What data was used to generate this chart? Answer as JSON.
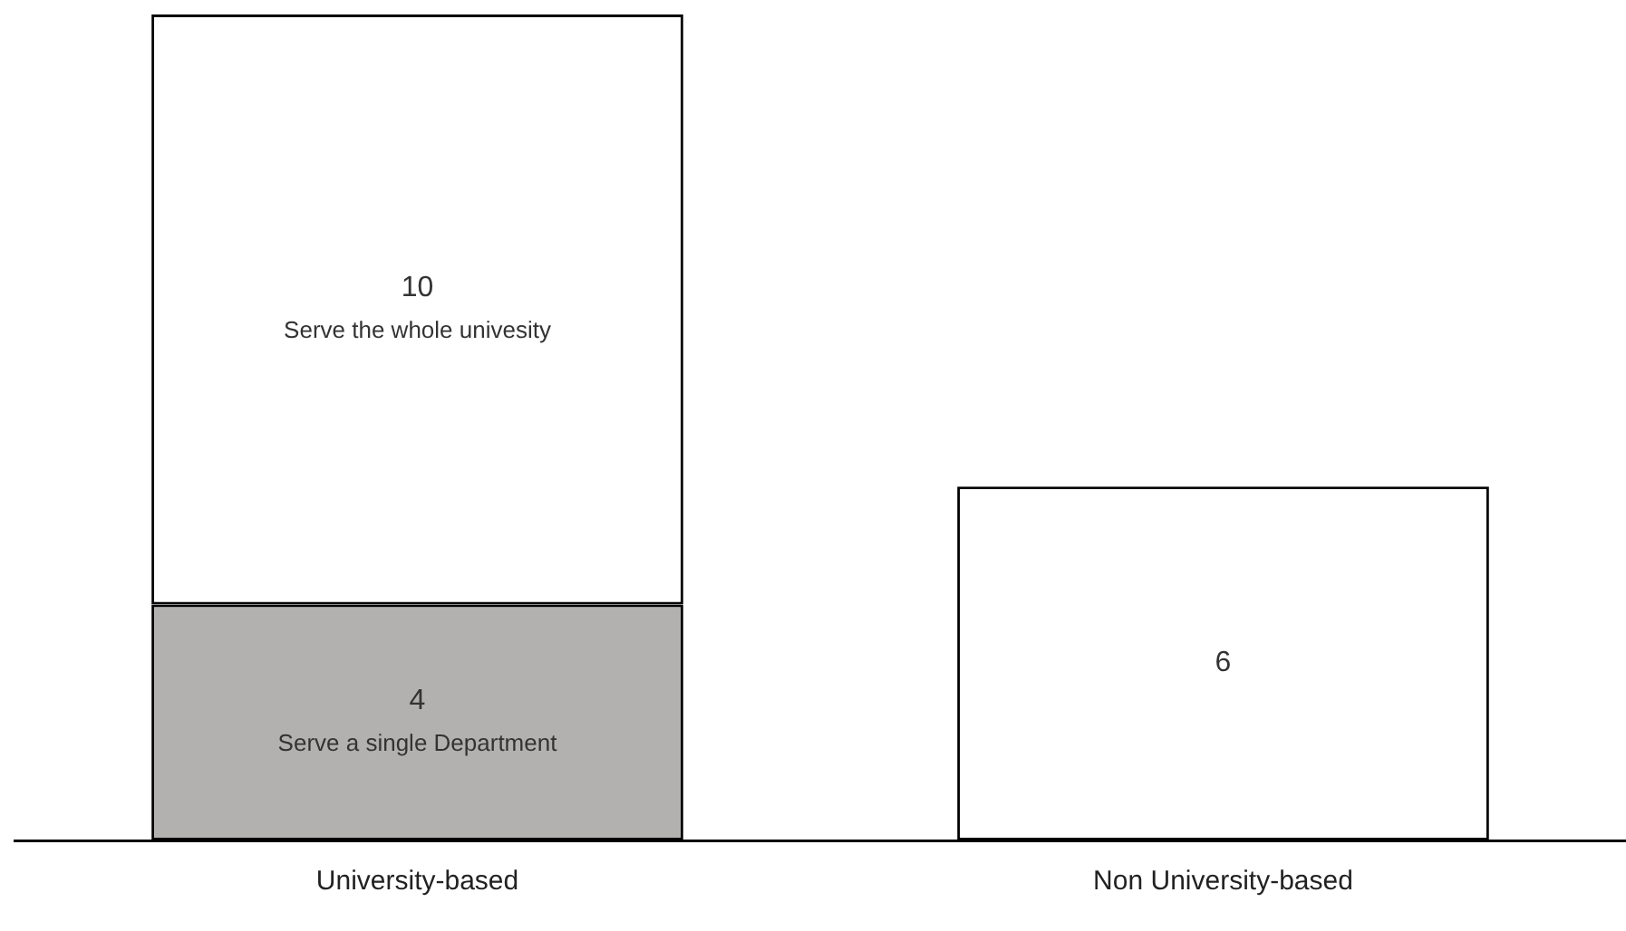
{
  "chart_data": {
    "type": "bar",
    "stacked": true,
    "categories": [
      "University-based",
      "Non University-based"
    ],
    "series": [
      {
        "name": "Serve a single Department",
        "color": "#b3b1b0",
        "values": [
          4,
          null
        ]
      },
      {
        "name": "Serve the whole univesity",
        "color": "#ffffff",
        "values": [
          10,
          null
        ]
      },
      {
        "color": "#ffffff",
        "values": [
          null,
          6
        ]
      }
    ],
    "data_labels": true,
    "legend": false,
    "grid": false,
    "tick_labels": "x"
  }
}
